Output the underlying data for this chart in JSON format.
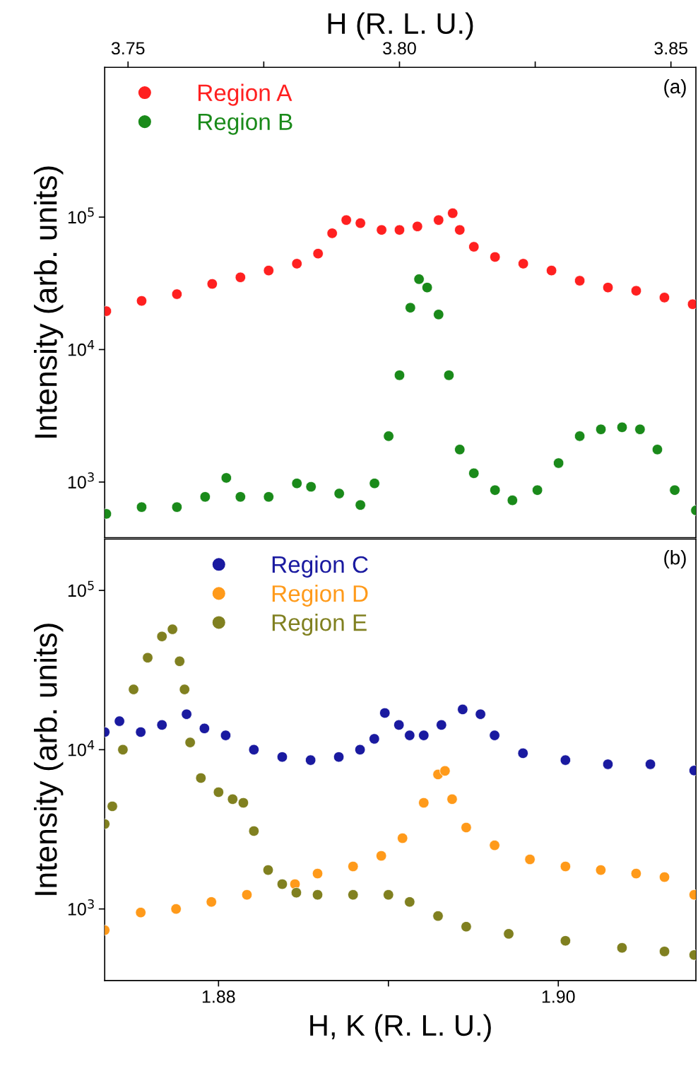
{
  "chart_data": [
    {
      "type": "scatter",
      "xlabel": "H (R. L. U.)",
      "ylabel": "Intensity (arb. units)",
      "log": "y",
      "marker": "circle",
      "legend": "top left",
      "annotations": [
        "(a)"
      ],
      "xlim": [
        3.7457,
        3.8546
      ],
      "xticks": [
        3.75,
        {
          "value": 3.775,
          "label": null
        },
        {
          "value": 3.8,
          "label": "3.80"
        },
        {
          "value": 3.825,
          "label": null
        },
        3.85
      ],
      "ylim": [
        380,
        1350000
      ],
      "yticks": [
        {
          "value": 1000,
          "label": "10$^{3}$"
        },
        {
          "value": 10000,
          "label": "10$^{4}$"
        },
        {
          "value": 100000,
          "label": "10$^{5}$"
        }
      ],
      "series": [
        {
          "name": "Region A",
          "color": "#ff2020",
          "x": [
            3.746,
            3.7525,
            3.759,
            3.7655,
            3.7707,
            3.7759,
            3.7811,
            3.785,
            3.7876,
            3.7902,
            3.7928,
            3.7967,
            3.8,
            3.8033,
            3.8072,
            3.8098,
            3.8111,
            3.8137,
            3.8176,
            3.8228,
            3.828,
            3.8332,
            3.8384,
            3.8436,
            3.8488,
            3.854
          ],
          "values": [
            19500,
            23300,
            26200,
            31300,
            35100,
            39500,
            44500,
            53000,
            75500,
            95000,
            90000,
            80000,
            80000,
            85000,
            95000,
            107000,
            80000,
            59700,
            50000,
            44500,
            39500,
            33100,
            29400,
            27800,
            24700,
            22000
          ]
        },
        {
          "name": "Region B",
          "color": "#1a8a1a",
          "x": [
            3.746,
            3.7525,
            3.759,
            3.7642,
            3.7681,
            3.7707,
            3.7759,
            3.7811,
            3.7837,
            3.7889,
            3.7928,
            3.7954,
            3.798,
            3.8,
            3.802,
            3.8036,
            3.8051,
            3.8072,
            3.8091,
            3.8111,
            3.8137,
            3.8176,
            3.8208,
            3.8254,
            3.8293,
            3.8332,
            3.8371,
            3.841,
            3.8443,
            3.8475,
            3.8507,
            3.8546
          ],
          "values": [
            575,
            647,
            647,
            773,
            1075,
            773,
            773,
            977,
            921,
            819,
            671,
            977,
            2220,
            6400,
            20700,
            34000,
            29400,
            18400,
            6400,
            1760,
            1165,
            869,
            728,
            869,
            1390,
            2220,
            2500,
            2590,
            2500,
            1760,
            869,
            611
          ]
        }
      ]
    },
    {
      "type": "scatter",
      "xlabel": "H, K (R. L. U.)",
      "ylabel": "Intensity (arb. units)",
      "log": "y",
      "marker": "circle",
      "legend": "top",
      "annotations": [
        "(b)"
      ],
      "xlim": [
        1.8733,
        1.9081
      ],
      "xticks": [
        {
          "value": 1.88,
          "label": "1.88"
        },
        {
          "value": 1.89,
          "label": null
        },
        {
          "value": 1.9,
          "label": "1.90"
        }
      ],
      "ylim": [
        355,
        210000
      ],
      "yticks": [
        {
          "value": 1000,
          "label": "10$^{3}$"
        },
        {
          "value": 10000,
          "label": "10$^{4}$"
        },
        {
          "value": 100000,
          "label": "10$^{5}$"
        }
      ],
      "series": [
        {
          "name": "Region C",
          "color": "#1a1aa0",
          "x": [
            1.8733,
            1.87417,
            1.87542,
            1.87667,
            1.87812,
            1.87917,
            1.88042,
            1.88208,
            1.88375,
            1.88542,
            1.88708,
            1.88833,
            1.88917,
            1.88979,
            1.89062,
            1.89125,
            1.89208,
            1.89312,
            1.89437,
            1.89542,
            1.89625,
            1.89792,
            1.90042,
            1.90292,
            1.90542,
            1.908
          ],
          "values": [
            12900,
            15100,
            12900,
            14300,
            16700,
            13600,
            12300,
            10000,
            9000,
            8600,
            9000,
            10000,
            11700,
            17000,
            14300,
            12300,
            12300,
            14300,
            17900,
            16700,
            12300,
            9500,
            8600,
            8100,
            8100,
            7400
          ]
        },
        {
          "name": "Region D",
          "color": "#ff9a1a",
          "x": [
            1.8733,
            1.87542,
            1.8775,
            1.87958,
            1.88167,
            1.8845,
            1.88583,
            1.88792,
            1.88958,
            1.89083,
            1.89208,
            1.89292,
            1.89333,
            1.89375,
            1.89458,
            1.89625,
            1.89833,
            1.90042,
            1.9025,
            1.90458,
            1.90625,
            1.908
          ],
          "values": [
            736,
            950,
            1000,
            1107,
            1227,
            1432,
            1668,
            1849,
            2155,
            2782,
            4640,
            6990,
            7360,
            4890,
            3245,
            2510,
            2048,
            1849,
            1755,
            1668,
            1585,
            1227
          ]
        },
        {
          "name": "Region E",
          "color": "#808020",
          "x": [
            1.8733,
            1.87375,
            1.87437,
            1.875,
            1.87583,
            1.87667,
            1.87729,
            1.87771,
            1.878,
            1.87833,
            1.87896,
            1.88,
            1.88083,
            1.88146,
            1.88208,
            1.88292,
            1.88375,
            1.88458,
            1.88583,
            1.88792,
            1.89,
            1.89125,
            1.89292,
            1.89458,
            1.89708,
            1.90042,
            1.90375,
            1.90625,
            1.908
          ],
          "values": [
            3415,
            4410,
            10000,
            23900,
            37800,
            51400,
            57000,
            35900,
            23900,
            11100,
            6640,
            5410,
            4890,
            4640,
            3085,
            1755,
            1432,
            1265,
            1227,
            1227,
            1227,
            1107,
            903,
            774,
            698,
            631,
            570,
            541,
            514
          ]
        }
      ]
    }
  ]
}
